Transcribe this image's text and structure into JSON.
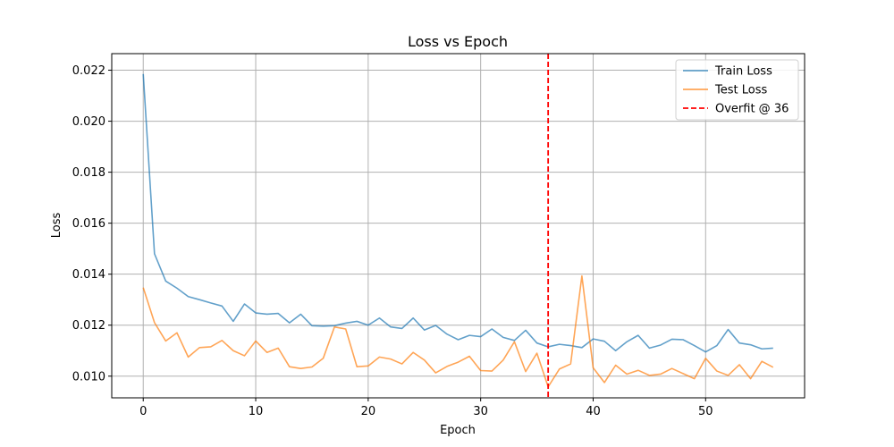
{
  "chart_data": {
    "type": "line",
    "title": "Loss vs Epoch",
    "xlabel": "Epoch",
    "ylabel": "Loss",
    "xlim": [
      -2.8,
      58.8
    ],
    "ylim": [
      0.00915,
      0.02265
    ],
    "xticks": [
      0,
      10,
      20,
      30,
      40,
      50
    ],
    "yticks": [
      0.01,
      0.012,
      0.014,
      0.016,
      0.018,
      0.02,
      0.022
    ],
    "grid": true,
    "legend_position": "top-right",
    "x": [
      0,
      1,
      2,
      3,
      4,
      5,
      6,
      7,
      8,
      9,
      10,
      11,
      12,
      13,
      14,
      15,
      16,
      17,
      18,
      19,
      20,
      21,
      22,
      23,
      24,
      25,
      26,
      27,
      28,
      29,
      30,
      31,
      32,
      33,
      34,
      35,
      36,
      37,
      38,
      39,
      40,
      41,
      42,
      43,
      44,
      45,
      46,
      47,
      48,
      49,
      50,
      51,
      52,
      53,
      54,
      55,
      56
    ],
    "series": [
      {
        "name": "Train Loss",
        "color": "#1f77b4",
        "values": [
          0.02185,
          0.0148,
          0.01373,
          0.01345,
          0.01312,
          0.013,
          0.01287,
          0.01275,
          0.01215,
          0.01283,
          0.01248,
          0.01243,
          0.01246,
          0.01209,
          0.01243,
          0.01198,
          0.01196,
          0.01198,
          0.01208,
          0.01215,
          0.012,
          0.01228,
          0.01193,
          0.01187,
          0.01228,
          0.01181,
          0.01199,
          0.01165,
          0.01143,
          0.0116,
          0.01155,
          0.01185,
          0.01152,
          0.0114,
          0.0118,
          0.0113,
          0.01115,
          0.01125,
          0.0112,
          0.01112,
          0.01146,
          0.01137,
          0.011,
          0.01135,
          0.0116,
          0.0111,
          0.01122,
          0.01145,
          0.01143,
          0.0112,
          0.01095,
          0.0112,
          0.01183,
          0.0113,
          0.01123,
          0.01107,
          0.0111
        ]
      },
      {
        "name": "Test Loss",
        "color": "#ff7f0e",
        "values": [
          0.01347,
          0.0121,
          0.01138,
          0.0117,
          0.01075,
          0.01112,
          0.01115,
          0.0114,
          0.011,
          0.0108,
          0.01138,
          0.01093,
          0.0111,
          0.01037,
          0.0103,
          0.01036,
          0.0107,
          0.01193,
          0.01185,
          0.01037,
          0.0104,
          0.01075,
          0.01067,
          0.01048,
          0.01093,
          0.01063,
          0.01013,
          0.01038,
          0.01055,
          0.01078,
          0.01022,
          0.0102,
          0.01063,
          0.01135,
          0.01018,
          0.0109,
          0.00958,
          0.01028,
          0.01048,
          0.01393,
          0.01033,
          0.00975,
          0.01043,
          0.01008,
          0.01023,
          0.01003,
          0.01008,
          0.0103,
          0.0101,
          0.0099,
          0.0107,
          0.0102,
          0.01003,
          0.01045,
          0.0099,
          0.01058,
          0.01035
        ]
      }
    ],
    "vline": {
      "x": 36,
      "name": "Overfit @ 36",
      "color": "#ff0000",
      "style": "dashed"
    }
  }
}
